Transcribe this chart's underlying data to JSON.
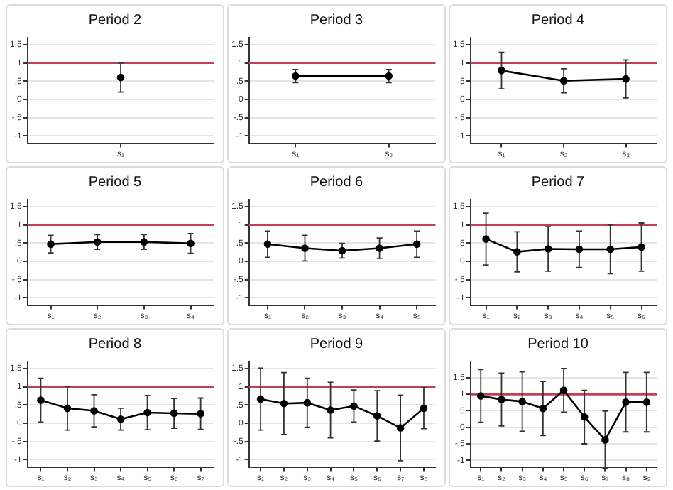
{
  "chart_data": [
    {
      "type": "line",
      "title": "Period 2",
      "categories": [
        "s₁"
      ],
      "values": [
        0.6
      ],
      "errors": [
        0.4
      ],
      "color": "#000000",
      "marker": "circle",
      "ylim": [
        -1.2,
        1.7
      ],
      "yticks": [
        {
          "value": -1,
          "label": "-1"
        },
        {
          "value": -0.5,
          "label": "-.5"
        },
        0,
        {
          "value": 0.5,
          "label": ".5"
        },
        1,
        1.5
      ],
      "grid": "y",
      "ref_lines": [
        {
          "axis": "y",
          "value": 1,
          "color": "#c0405a"
        }
      ]
    },
    {
      "type": "line",
      "title": "Period 3",
      "categories": [
        "s₁",
        "s₂"
      ],
      "values": [
        0.64,
        0.64
      ],
      "errors": [
        0.18,
        0.18
      ],
      "color": "#000000",
      "marker": "circle",
      "ylim": [
        -1.2,
        1.7
      ],
      "yticks": [
        {
          "value": -1,
          "label": "-1"
        },
        {
          "value": -0.5,
          "label": "-.5"
        },
        0,
        {
          "value": 0.5,
          "label": ".5"
        },
        1,
        1.5
      ],
      "grid": "y",
      "ref_lines": [
        {
          "axis": "y",
          "value": 1,
          "color": "#c0405a"
        }
      ]
    },
    {
      "type": "line",
      "title": "Period 4",
      "categories": [
        "s₁",
        "s₂",
        "s₃"
      ],
      "values": [
        0.79,
        0.51,
        0.56
      ],
      "errors": [
        0.5,
        0.33,
        0.52
      ],
      "color": "#000000",
      "marker": "circle",
      "ylim": [
        -1.2,
        1.7
      ],
      "yticks": [
        {
          "value": -1,
          "label": "-1"
        },
        {
          "value": -0.5,
          "label": "-.5"
        },
        0,
        {
          "value": 0.5,
          "label": ".5"
        },
        1,
        1.5
      ],
      "grid": "y",
      "ref_lines": [
        {
          "axis": "y",
          "value": 1,
          "color": "#c0405a"
        }
      ]
    },
    {
      "type": "line",
      "title": "Period 5",
      "categories": [
        "s₁",
        "s₂",
        "s₃",
        "s₄"
      ],
      "values": [
        0.47,
        0.53,
        0.53,
        0.49
      ],
      "errors": [
        0.24,
        0.2,
        0.2,
        0.27
      ],
      "color": "#000000",
      "marker": "circle",
      "ylim": [
        -1.2,
        1.7
      ],
      "yticks": [
        {
          "value": -1,
          "label": "-1"
        },
        {
          "value": -0.5,
          "label": "-.5"
        },
        0,
        {
          "value": 0.5,
          "label": ".5"
        },
        1,
        1.5
      ],
      "grid": "y",
      "ref_lines": [
        {
          "axis": "y",
          "value": 1,
          "color": "#c0405a"
        }
      ]
    },
    {
      "type": "line",
      "title": "Period 6",
      "categories": [
        "s₁",
        "s₂",
        "s₃",
        "s₄",
        "s₅"
      ],
      "values": [
        0.47,
        0.36,
        0.29,
        0.36,
        0.47
      ],
      "errors": [
        0.36,
        0.35,
        0.2,
        0.28,
        0.36
      ],
      "color": "#000000",
      "marker": "circle",
      "ylim": [
        -1.2,
        1.7
      ],
      "yticks": [
        {
          "value": -1,
          "label": "-1"
        },
        {
          "value": -0.5,
          "label": "-.5"
        },
        0,
        {
          "value": 0.5,
          "label": ".5"
        },
        1,
        1.5
      ],
      "grid": "y",
      "ref_lines": [
        {
          "axis": "y",
          "value": 1,
          "color": "#c0405a"
        }
      ]
    },
    {
      "type": "line",
      "title": "Period 7",
      "categories": [
        "s₁",
        "s₂",
        "s₃",
        "s₄",
        "s₅",
        "s₆"
      ],
      "values": [
        0.61,
        0.26,
        0.34,
        0.33,
        0.33,
        0.39
      ],
      "errors": [
        0.71,
        0.55,
        0.61,
        0.5,
        0.67,
        0.66
      ],
      "color": "#000000",
      "marker": "circle",
      "ylim": [
        -1.2,
        1.7
      ],
      "yticks": [
        {
          "value": -1,
          "label": "-1"
        },
        {
          "value": -0.5,
          "label": "-.5"
        },
        0,
        {
          "value": 0.5,
          "label": ".5"
        },
        1,
        1.5
      ],
      "grid": "y",
      "ref_lines": [
        {
          "axis": "y",
          "value": 1,
          "color": "#c0405a"
        }
      ]
    },
    {
      "type": "line",
      "title": "Period 8",
      "categories": [
        "s₁",
        "s₂",
        "s₃",
        "s₄",
        "s₅",
        "s₆",
        "s₇"
      ],
      "values": [
        0.63,
        0.41,
        0.34,
        0.11,
        0.29,
        0.27,
        0.26
      ],
      "errors": [
        0.6,
        0.6,
        0.44,
        0.3,
        0.47,
        0.41,
        0.43
      ],
      "color": "#000000",
      "marker": "circle",
      "ylim": [
        -1.2,
        1.7
      ],
      "yticks": [
        {
          "value": -1,
          "label": "-1"
        },
        {
          "value": -0.5,
          "label": "-.5"
        },
        0,
        {
          "value": 0.5,
          "label": ".5"
        },
        1,
        1.5
      ],
      "grid": "y",
      "ref_lines": [
        {
          "axis": "y",
          "value": 1,
          "color": "#c0405a"
        }
      ]
    },
    {
      "type": "line",
      "title": "Period 9",
      "categories": [
        "s₁",
        "s₂",
        "s₃",
        "s₄",
        "s₅",
        "s₆",
        "s₇",
        "s₈"
      ],
      "values": [
        0.66,
        0.54,
        0.56,
        0.36,
        0.47,
        0.2,
        -0.13,
        0.41
      ],
      "errors": [
        0.85,
        0.85,
        0.67,
        0.76,
        0.44,
        0.69,
        0.9,
        0.56
      ],
      "color": "#000000",
      "marker": "circle",
      "ylim": [
        -1.2,
        1.7
      ],
      "yticks": [
        {
          "value": -1,
          "label": "-1"
        },
        {
          "value": -0.5,
          "label": "-.5"
        },
        0,
        {
          "value": 0.5,
          "label": ".5"
        },
        1,
        1.5
      ],
      "grid": "y",
      "ref_lines": [
        {
          "axis": "y",
          "value": 1,
          "color": "#c0405a"
        }
      ]
    },
    {
      "type": "line",
      "title": "Period 10",
      "categories": [
        "s₁",
        "s₂",
        "s₃",
        "s₄",
        "s₅",
        "s₆",
        "s₇",
        "s₈",
        "s₉"
      ],
      "values": [
        0.95,
        0.84,
        0.78,
        0.57,
        1.12,
        0.31,
        -0.38,
        0.76,
        0.76
      ],
      "errors": [
        0.8,
        0.8,
        0.9,
        0.82,
        0.66,
        0.81,
        0.87,
        0.9,
        0.9
      ],
      "color": "#000000",
      "marker": "circle",
      "ylim": [
        -1.2,
        2
      ],
      "yticks": [
        {
          "value": -1,
          "label": "-1"
        },
        {
          "value": -0.5,
          "label": "-.5"
        },
        0,
        {
          "value": 0.5,
          "label": ".5"
        },
        1,
        1.5
      ],
      "grid": "y",
      "ref_lines": [
        {
          "axis": "y",
          "value": 1,
          "color": "#c0405a"
        }
      ]
    }
  ]
}
